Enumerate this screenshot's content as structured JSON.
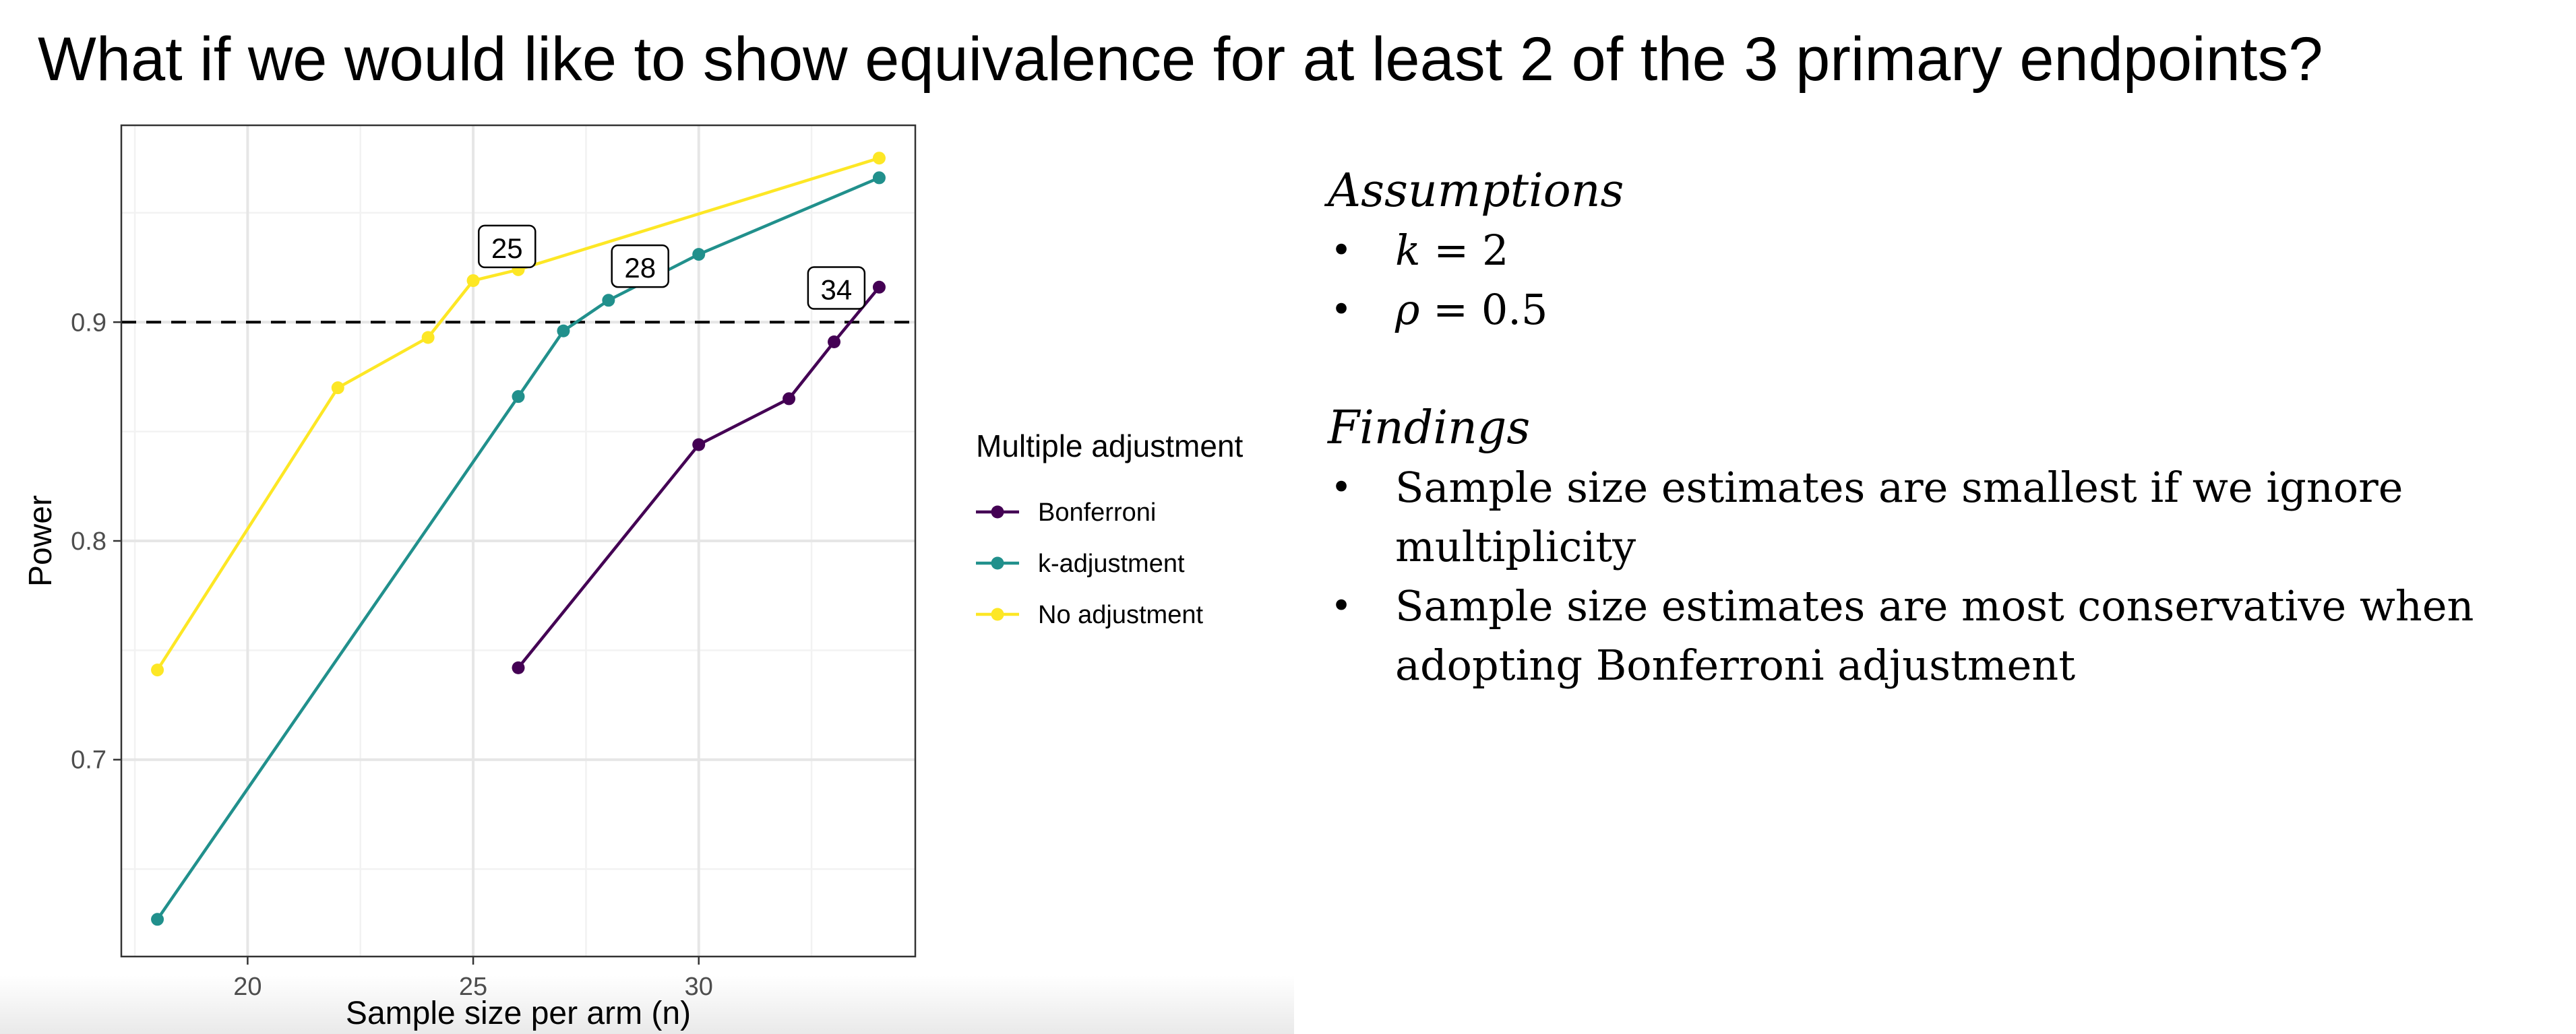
{
  "slide": {
    "title": "What if we would like to show equivalence for at least 2 of the 3 primary endpoints?"
  },
  "assumptions": {
    "heading": "Assumptions",
    "items": [
      {
        "var": "k",
        "rest": " = 2"
      },
      {
        "var": "ρ",
        "rest": " = 0.5"
      }
    ]
  },
  "findings": {
    "heading": "Findings",
    "items": [
      "Sample size estimates are smallest if we ignore multiplicity",
      "Sample size estimates are most conservative when adopting Bonferroni adjustment"
    ]
  },
  "chart_data": {
    "type": "line",
    "xlabel": "Sample size per arm (n)",
    "ylabel": "Power",
    "xlim": [
      17.2,
      34.8
    ],
    "ylim": [
      0.61,
      0.99
    ],
    "xticks": [
      20,
      25,
      30
    ],
    "yticks": [
      0.7,
      0.8,
      0.9
    ],
    "grid": true,
    "threshold": 0.9,
    "legend": {
      "title": "Multiple adjustment",
      "position": "right"
    },
    "series": [
      {
        "name": "Bonferroni",
        "color": "#440154",
        "x": [
          26,
          30,
          32,
          33,
          34
        ],
        "y": [
          0.742,
          0.844,
          0.865,
          0.891,
          0.916
        ]
      },
      {
        "name": "k-adjustment",
        "color": "#21908C",
        "x": [
          18,
          26,
          27,
          28,
          30,
          34
        ],
        "y": [
          0.627,
          0.866,
          0.896,
          0.91,
          0.931,
          0.966
        ]
      },
      {
        "name": "No adjustment",
        "color": "#FDE725",
        "x": [
          18,
          22,
          24,
          25,
          26,
          34
        ],
        "y": [
          0.741,
          0.87,
          0.893,
          0.919,
          0.924,
          0.975
        ]
      }
    ],
    "annotations": [
      {
        "text": "25",
        "x": 25.75,
        "y": 0.934
      },
      {
        "text": "28",
        "x": 28.7,
        "y": 0.925
      },
      {
        "text": "34",
        "x": 33.05,
        "y": 0.915
      }
    ]
  }
}
